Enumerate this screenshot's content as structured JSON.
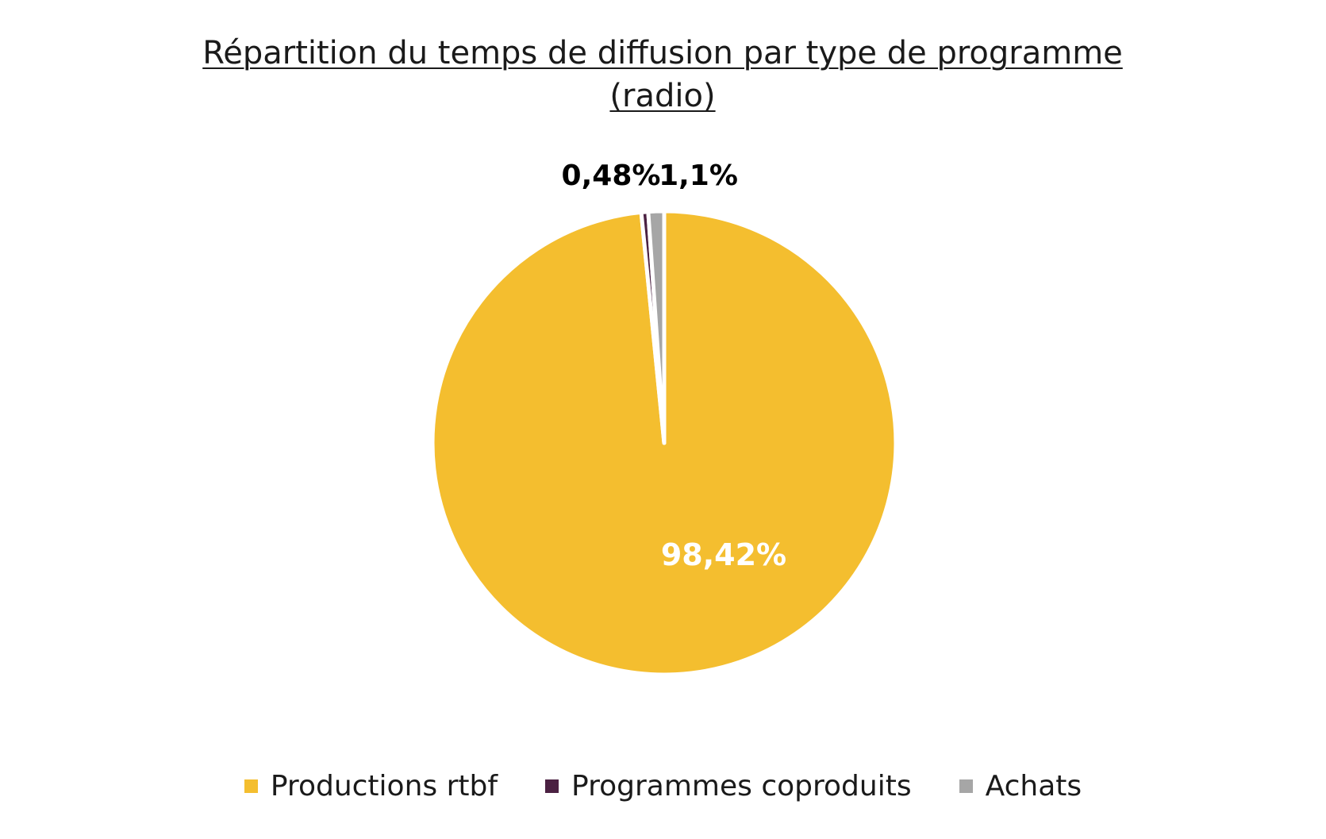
{
  "chart_data": {
    "type": "pie",
    "title_line1": "Répartition du temps de diffusion par type de programme",
    "title_line2": "(radio)",
    "slices": [
      {
        "name": "Productions rtbf",
        "value": 98.42,
        "label": "98,42%",
        "color": "#F4BE2F",
        "label_color": "#ffffff"
      },
      {
        "name": "Programmes coproduits",
        "value": 0.48,
        "label": "0,48%",
        "color": "#4B2142",
        "label_color": "#000000"
      },
      {
        "name": "Achats",
        "value": 1.1,
        "label": "1,1%",
        "color": "#A6A6A6",
        "label_color": "#000000"
      }
    ],
    "legend_placement": "bottom"
  }
}
